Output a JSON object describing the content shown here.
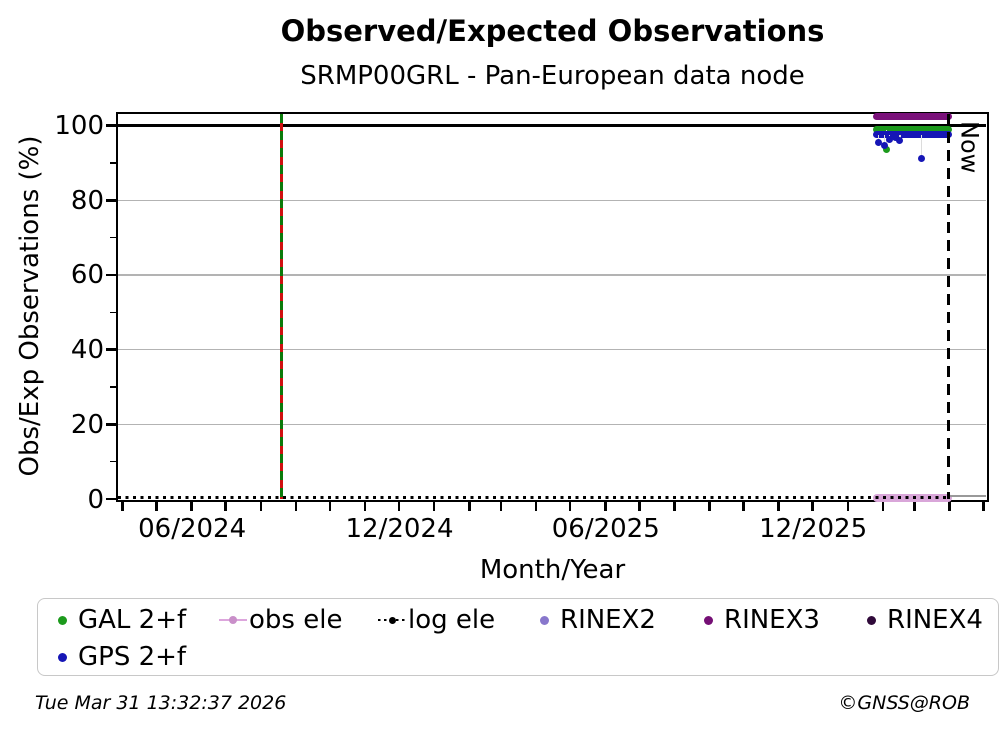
{
  "title": "Observed/Expected Observations",
  "subtitle": "SRMP00GRL - Pan-European data node",
  "footer": {
    "timestamp": "Tue Mar 31 13:32:37 2026",
    "copyright": "©GNSS@ROB"
  },
  "legend": {
    "items": [
      {
        "label": "GAL 2+f",
        "marker": "dot",
        "color": "#1C9A1C"
      },
      {
        "label": "obs ele",
        "marker": "line-dot",
        "color": "#DDA6DD",
        "dot_color": "#C98FC9"
      },
      {
        "label": "log ele",
        "marker": "dotted-dot",
        "color": "#000000"
      },
      {
        "label": "RINEX2",
        "marker": "dot",
        "color": "#8877CC"
      },
      {
        "label": "RINEX3",
        "marker": "dot",
        "color": "#750F75"
      },
      {
        "label": "RINEX4",
        "marker": "dot",
        "color": "#300A3A"
      },
      {
        "label": "GPS 2+f",
        "marker": "dot",
        "color": "#1616B6"
      }
    ]
  },
  "chart_data": {
    "type": "scatter",
    "title": "Observed/Expected Observations",
    "subtitle": "SRMP00GRL - Pan-European data node",
    "xlabel": "Month/Year",
    "ylabel": "Obs/Exp Observations (%)",
    "x_range": [
      "2024-03-28",
      "2026-05-03"
    ],
    "y_range": [
      0,
      103.1
    ],
    "grid": "horizontal-only",
    "legend_position": "below",
    "x_major_ticks": [
      {
        "date": "2024-06-01",
        "label": "06/2024"
      },
      {
        "date": "2024-12-01",
        "label": "12/2024"
      },
      {
        "date": "2025-06-01",
        "label": "06/2025"
      },
      {
        "date": "2025-12-01",
        "label": "12/2025"
      }
    ],
    "x_minor_ticks_monthly": {
      "start": "2024-04-01",
      "end": "2026-05-01"
    },
    "y_major_ticks": [
      0,
      20,
      40,
      60,
      80,
      100
    ],
    "y_minor_ticks": [
      10,
      30,
      50,
      70,
      90
    ],
    "y_gridlines": [
      20,
      40,
      60,
      80
    ],
    "reference_line_y": 100,
    "vertical_lines": [
      {
        "name": "station-event-line",
        "date": "2024-08-19",
        "style": "green-red-dashed"
      },
      {
        "name": "now-line",
        "date": "2026-03-31",
        "style": "black-dashed",
        "label": "Now"
      }
    ],
    "series": [
      {
        "name": "RINEX3",
        "color": "#7A117A",
        "kind": "band",
        "band": {
          "start": "2026-01-26",
          "end": "2026-03-31",
          "value": 102.4
        }
      },
      {
        "name": "GAL 2+f",
        "color": "#1C9A1C",
        "kind": "band+scatter",
        "band": {
          "start": "2026-01-26",
          "end": "2026-03-31",
          "value": 98.9
        },
        "points": [
          {
            "date": "2026-02-04",
            "value": 93.6
          }
        ]
      },
      {
        "name": "GPS 2+f",
        "color": "#1616B6",
        "kind": "band+scatter",
        "band": {
          "start": "2026-01-26",
          "end": "2026-03-31",
          "value": 97.6
        },
        "points": [
          {
            "date": "2026-01-28",
            "value": 95.6
          },
          {
            "date": "2026-02-02",
            "value": 94.6
          },
          {
            "date": "2026-02-07",
            "value": 96.4
          },
          {
            "date": "2026-02-12",
            "value": 96.7
          },
          {
            "date": "2026-02-16",
            "value": 95.9
          },
          {
            "date": "2026-03-07",
            "value": 91.1
          }
        ]
      },
      {
        "name": "obs ele",
        "color": "#D9A6D9",
        "kind": "band",
        "band": {
          "start": "2026-01-26",
          "end": "2026-03-31",
          "value": 0.4
        }
      },
      {
        "name": "log ele",
        "color": "#000000",
        "kind": "dotted-line",
        "y": 0.4,
        "start": "2024-03-28",
        "end": "2026-03-31"
      }
    ],
    "post_now_baseline": {
      "start": "2026-03-31",
      "end": "2026-05-03",
      "value": 0.8,
      "color": "#999999"
    }
  }
}
